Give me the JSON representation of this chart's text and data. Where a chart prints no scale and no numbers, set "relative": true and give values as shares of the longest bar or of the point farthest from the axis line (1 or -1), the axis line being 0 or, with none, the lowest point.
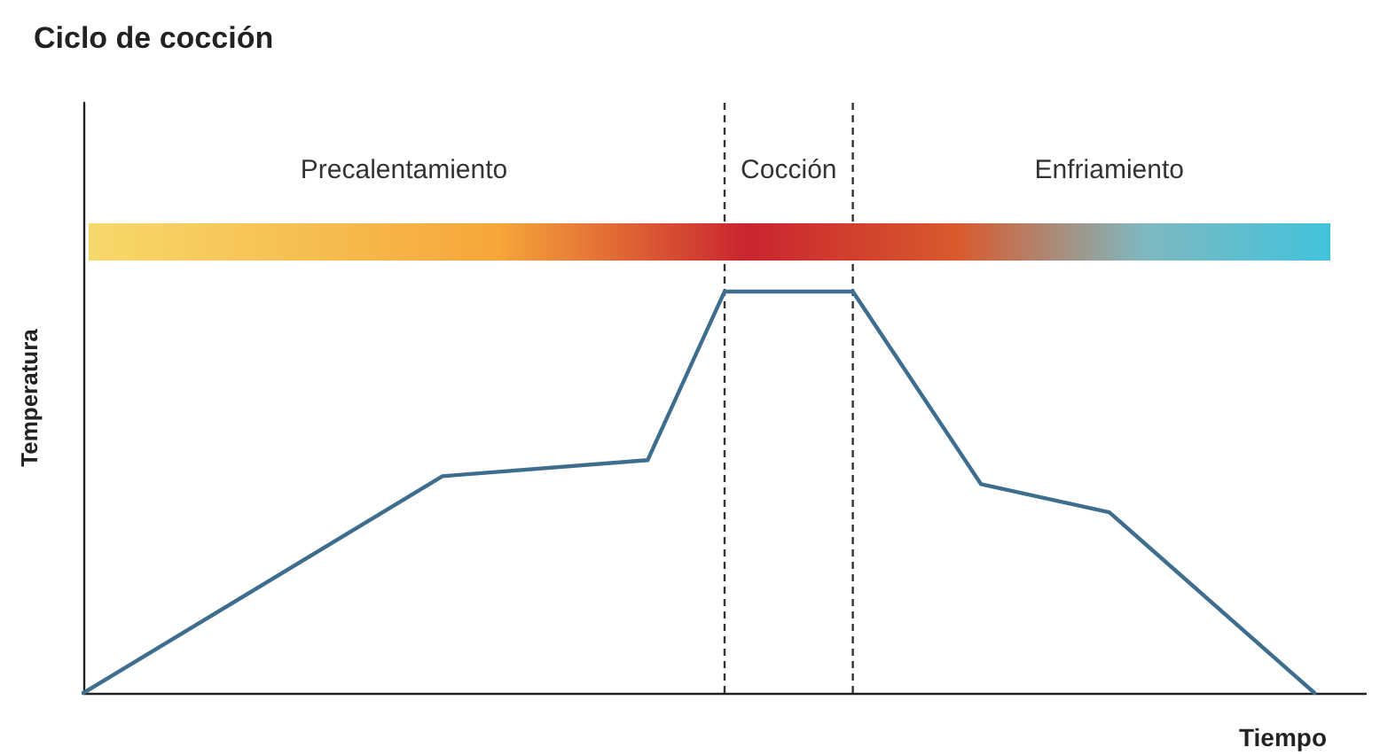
{
  "chart_data": {
    "type": "line",
    "title": "Ciclo de cocción",
    "xlabel": "Tiempo",
    "ylabel": "Temperatura",
    "relative": true,
    "categories": [
      null,
      null,
      null,
      null,
      null,
      null,
      null,
      null,
      null,
      null,
      null,
      null,
      null,
      null,
      null,
      null,
      null,
      null,
      null,
      null,
      null,
      null,
      null,
      null,
      null,
      null,
      null,
      null,
      null,
      null,
      null,
      null,
      null,
      null,
      null,
      null,
      null,
      null,
      null,
      null,
      null,
      null,
      null,
      null,
      null,
      null,
      null,
      null,
      null,
      null,
      null
    ],
    "series": [
      {
        "color": "#3e6d8e",
        "values": [
          0,
          null,
          null,
          null,
          null,
          null,
          null,
          null,
          null,
          null,
          null,
          null,
          null,
          null,
          0.54,
          null,
          null,
          null,
          null,
          null,
          null,
          null,
          0.58,
          null,
          null,
          1,
          null,
          null,
          null,
          null,
          1,
          null,
          null,
          null,
          null,
          0.52,
          null,
          null,
          null,
          null,
          0.45,
          null,
          null,
          null,
          null,
          null,
          null,
          null,
          0,
          null,
          null
        ]
      }
    ],
    "annotations": [
      "Precalentamiento",
      "Cocción",
      "Enfriamiento"
    ]
  }
}
